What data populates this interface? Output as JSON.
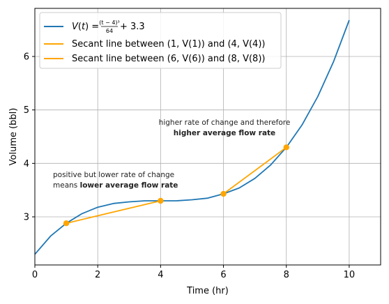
{
  "chart_data": {
    "type": "line",
    "xlabel": "Time (hr)",
    "ylabel": "Volume (bbl)",
    "xlim": [
      0,
      11
    ],
    "ylim": [
      2.1,
      6.9
    ],
    "x_ticks": [
      0,
      2,
      4,
      6,
      8,
      10
    ],
    "y_ticks": [
      3,
      4,
      5,
      6
    ],
    "grid": true,
    "legend_position": "top-left",
    "colors": {
      "curve": "#1f77b4",
      "secant": "#ffa500",
      "grid": "#b0b0b0"
    },
    "curve": {
      "name_prefix": "V(t) = ",
      "name_numerator": "(t − 4)³",
      "name_denominator": "64",
      "name_suffix": " + 3.3",
      "x": [
        0,
        0.5,
        1,
        1.5,
        2,
        2.5,
        3,
        3.5,
        4,
        4.5,
        5,
        5.5,
        6,
        6.5,
        7,
        7.5,
        8,
        8.5,
        9,
        9.5,
        10
      ],
      "y": [
        2.3,
        2.64,
        2.88,
        3.06,
        3.18,
        3.25,
        3.28,
        3.3,
        3.3,
        3.3,
        3.32,
        3.35,
        3.43,
        3.54,
        3.72,
        3.97,
        4.3,
        4.72,
        5.25,
        5.9,
        6.68
      ]
    },
    "secants": [
      {
        "name": "Secant line between (1, V(1)) and (4, V(4))",
        "points": [
          [
            1,
            2.88
          ],
          [
            4,
            3.3
          ]
        ]
      },
      {
        "name": "Secant line between (6, V(6)) and (8, V(8))",
        "points": [
          [
            6,
            3.43
          ],
          [
            8,
            4.3
          ]
        ]
      }
    ],
    "annotations": [
      {
        "lines": [
          {
            "plain": "positive but lower rate of change",
            "bold": ""
          },
          {
            "plain": "means ",
            "bold": "lower average flow rate"
          }
        ]
      },
      {
        "lines": [
          {
            "plain": "higher rate of change and therefore",
            "bold": ""
          },
          {
            "plain": "",
            "bold": "higher average flow rate"
          }
        ]
      }
    ]
  }
}
